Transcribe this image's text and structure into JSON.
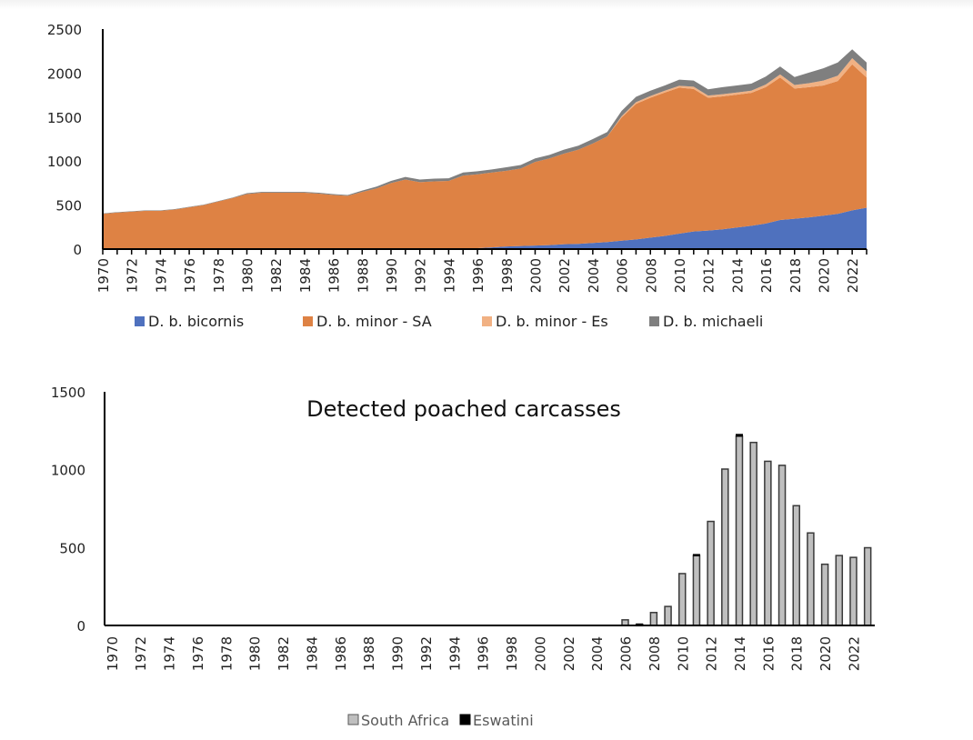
{
  "chart_data": [
    {
      "type": "area",
      "stacked": true,
      "title": "",
      "xlabel": "",
      "ylabel": "",
      "ylim": [
        0,
        2500
      ],
      "y_ticks": [
        "0",
        "500",
        "1000",
        "1500",
        "2000",
        "2500"
      ],
      "x": [
        1970,
        1971,
        1972,
        1973,
        1974,
        1975,
        1976,
        1977,
        1978,
        1979,
        1980,
        1981,
        1982,
        1983,
        1984,
        1985,
        1986,
        1987,
        1988,
        1989,
        1990,
        1991,
        1992,
        1993,
        1994,
        1995,
        1996,
        1997,
        1998,
        1999,
        2000,
        2001,
        2002,
        2003,
        2004,
        2005,
        2006,
        2007,
        2008,
        2009,
        2010,
        2011,
        2012,
        2013,
        2014,
        2015,
        2016,
        2017,
        2018,
        2019,
        2020,
        2021,
        2022,
        2023
      ],
      "x_tick_labels": [
        "1970",
        "1972",
        "1974",
        "1976",
        "1978",
        "1980",
        "1982",
        "1984",
        "1986",
        "1988",
        "1990",
        "1992",
        "1994",
        "1996",
        "1998",
        "2000",
        "2002",
        "2004",
        "2006",
        "2008",
        "2010",
        "2012",
        "2014",
        "2016",
        "2018",
        "2020",
        "2022"
      ],
      "grid": false,
      "legend_position": "bottom",
      "series": [
        {
          "name": "D. b. bicornis",
          "color": "#4f71be",
          "values": [
            0,
            0,
            0,
            0,
            0,
            0,
            0,
            0,
            0,
            0,
            0,
            0,
            0,
            0,
            0,
            0,
            0,
            0,
            0,
            0,
            0,
            0,
            0,
            0,
            0,
            5,
            10,
            20,
            30,
            35,
            40,
            45,
            55,
            60,
            70,
            80,
            95,
            110,
            130,
            150,
            175,
            200,
            210,
            225,
            245,
            265,
            290,
            330,
            345,
            360,
            380,
            400,
            440,
            470
          ]
        },
        {
          "name": "D. b. minor - SA",
          "color": "#de8244",
          "values": [
            400,
            415,
            425,
            435,
            435,
            450,
            475,
            500,
            540,
            580,
            625,
            640,
            640,
            640,
            640,
            630,
            615,
            605,
            650,
            690,
            750,
            790,
            760,
            770,
            775,
            830,
            840,
            850,
            860,
            880,
            950,
            985,
            1030,
            1070,
            1130,
            1200,
            1400,
            1540,
            1590,
            1630,
            1660,
            1620,
            1510,
            1510,
            1510,
            1510,
            1550,
            1620,
            1480,
            1480,
            1480,
            1510,
            1660,
            1480
          ]
        },
        {
          "name": "D. b. minor - Es",
          "color": "#f1b183",
          "values": [
            0,
            0,
            0,
            0,
            0,
            0,
            0,
            0,
            0,
            0,
            0,
            0,
            0,
            0,
            0,
            0,
            0,
            0,
            0,
            0,
            0,
            0,
            0,
            0,
            0,
            0,
            0,
            0,
            0,
            0,
            0,
            0,
            0,
            0,
            0,
            0,
            15,
            20,
            20,
            20,
            20,
            25,
            25,
            25,
            25,
            25,
            30,
            35,
            40,
            45,
            55,
            60,
            70,
            70
          ]
        },
        {
          "name": "D. b. michaeli",
          "color": "#7f7f7f",
          "values": [
            5,
            5,
            5,
            5,
            5,
            5,
            5,
            5,
            5,
            5,
            10,
            10,
            10,
            10,
            10,
            10,
            10,
            10,
            15,
            20,
            25,
            30,
            30,
            30,
            30,
            35,
            35,
            35,
            40,
            40,
            40,
            40,
            45,
            45,
            50,
            50,
            60,
            60,
            60,
            60,
            70,
            70,
            70,
            80,
            80,
            80,
            90,
            90,
            90,
            120,
            140,
            150,
            100,
            100
          ]
        }
      ]
    },
    {
      "type": "bar",
      "stacked": true,
      "title": "Detected poached carcasses",
      "xlabel": "",
      "ylabel": "",
      "ylim": [
        0,
        1500
      ],
      "y_ticks": [
        "0",
        "500",
        "1000",
        "1500"
      ],
      "x": [
        1970,
        1971,
        1972,
        1973,
        1974,
        1975,
        1976,
        1977,
        1978,
        1979,
        1980,
        1981,
        1982,
        1983,
        1984,
        1985,
        1986,
        1987,
        1988,
        1989,
        1990,
        1991,
        1992,
        1993,
        1994,
        1995,
        1996,
        1997,
        1998,
        1999,
        2000,
        2001,
        2002,
        2003,
        2004,
        2005,
        2006,
        2007,
        2008,
        2009,
        2010,
        2011,
        2012,
        2013,
        2014,
        2015,
        2016,
        2017,
        2018,
        2019,
        2020,
        2021,
        2022,
        2023
      ],
      "x_tick_labels": [
        "1970",
        "1972",
        "1974",
        "1976",
        "1978",
        "1980",
        "1982",
        "1984",
        "1986",
        "1988",
        "1990",
        "1992",
        "1994",
        "1996",
        "1998",
        "2000",
        "2002",
        "2004",
        "2006",
        "2008",
        "2010",
        "2012",
        "2014",
        "2016",
        "2018",
        "2020",
        "2022"
      ],
      "grid": false,
      "legend_position": "bottom",
      "series": [
        {
          "name": "South Africa",
          "color": "#bfbfbf",
          "values": [
            0,
            0,
            0,
            0,
            0,
            0,
            0,
            0,
            0,
            0,
            0,
            0,
            0,
            0,
            0,
            0,
            0,
            0,
            0,
            0,
            0,
            0,
            0,
            0,
            0,
            0,
            0,
            0,
            0,
            0,
            0,
            0,
            0,
            0,
            0,
            0,
            36,
            7,
            83,
            122,
            333,
            448,
            668,
            1004,
            1215,
            1175,
            1054,
            1028,
            769,
            594,
            393,
            449,
            437,
            499
          ]
        },
        {
          "name": "Eswatini",
          "color": "#000000",
          "values": [
            0,
            0,
            0,
            0,
            0,
            0,
            0,
            0,
            0,
            0,
            0,
            0,
            0,
            0,
            0,
            0,
            0,
            0,
            0,
            0,
            0,
            0,
            0,
            0,
            0,
            0,
            0,
            0,
            0,
            0,
            0,
            0,
            0,
            0,
            0,
            0,
            0,
            3,
            0,
            0,
            0,
            8,
            0,
            0,
            12,
            0,
            0,
            0,
            0,
            0,
            0,
            0,
            0,
            0
          ]
        }
      ]
    }
  ]
}
